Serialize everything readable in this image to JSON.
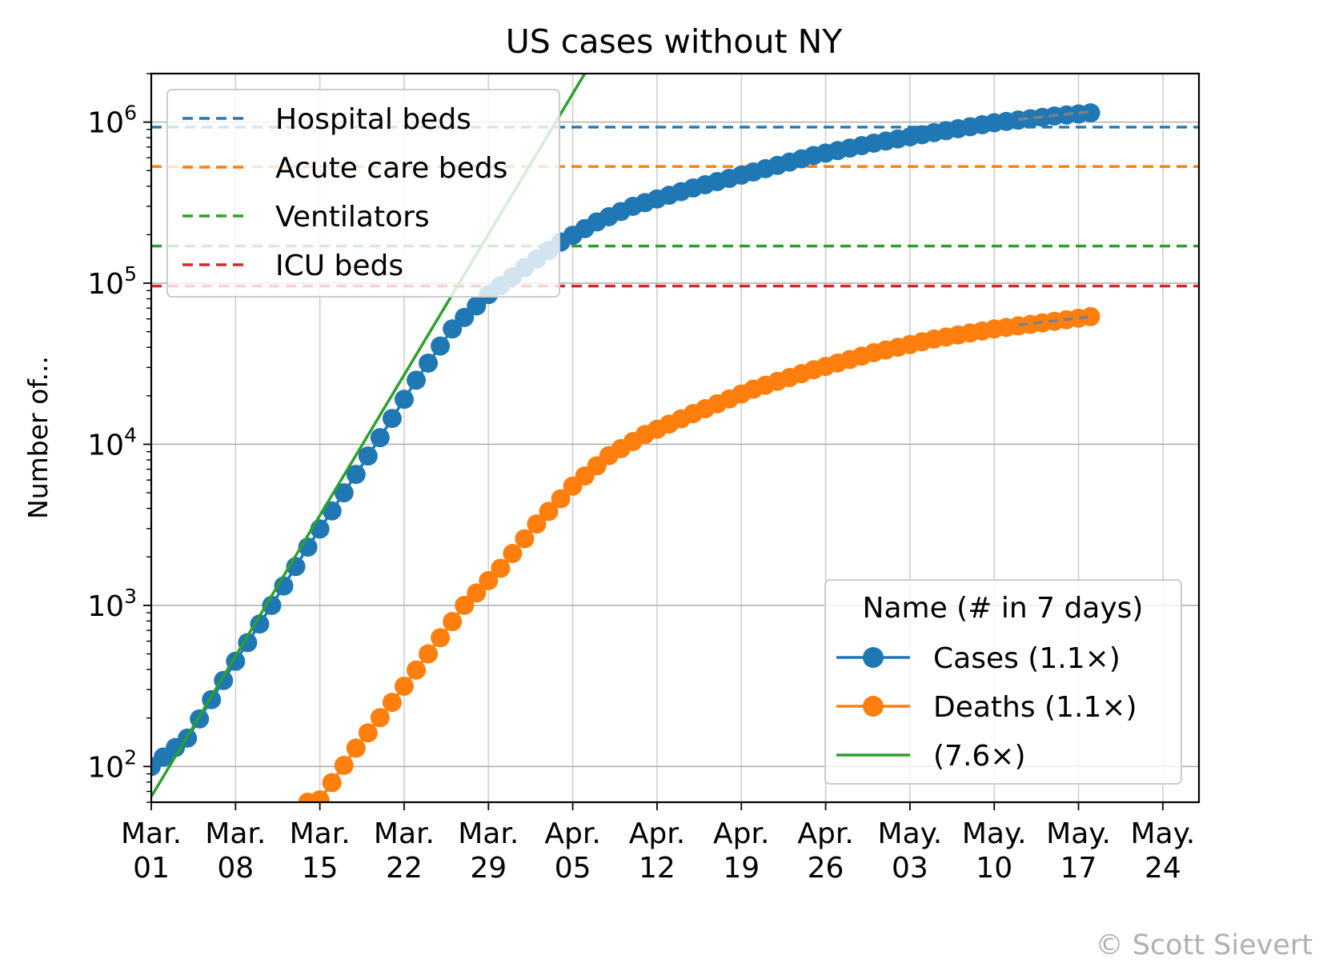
{
  "chart_data": {
    "type": "line",
    "title": "US cases without NY",
    "ylabel": "Number of...",
    "xlabel": "",
    "yscale": "log",
    "ylim": [
      60,
      2000000
    ],
    "x_start": "2020-03-01",
    "x_end": "2020-05-27",
    "grid": true,
    "x_ticks": [
      {
        "date": "2020-03-01",
        "line1": "Mar.",
        "line2": "01"
      },
      {
        "date": "2020-03-08",
        "line1": "Mar.",
        "line2": "08"
      },
      {
        "date": "2020-03-15",
        "line1": "Mar.",
        "line2": "15"
      },
      {
        "date": "2020-03-22",
        "line1": "Mar.",
        "line2": "22"
      },
      {
        "date": "2020-03-29",
        "line1": "Mar.",
        "line2": "29"
      },
      {
        "date": "2020-04-05",
        "line1": "Apr.",
        "line2": "05"
      },
      {
        "date": "2020-04-12",
        "line1": "Apr.",
        "line2": "12"
      },
      {
        "date": "2020-04-19",
        "line1": "Apr.",
        "line2": "19"
      },
      {
        "date": "2020-04-26",
        "line1": "Apr.",
        "line2": "26"
      },
      {
        "date": "2020-05-03",
        "line1": "May.",
        "line2": "03"
      },
      {
        "date": "2020-05-10",
        "line1": "May.",
        "line2": "10"
      },
      {
        "date": "2020-05-17",
        "line1": "May.",
        "line2": "17"
      },
      {
        "date": "2020-05-24",
        "line1": "May.",
        "line2": "24"
      }
    ],
    "y_ticks": [
      {
        "value": 100,
        "base": "10",
        "exp": "2"
      },
      {
        "value": 1000,
        "base": "10",
        "exp": "3"
      },
      {
        "value": 10000,
        "base": "10",
        "exp": "4"
      },
      {
        "value": 100000,
        "base": "10",
        "exp": "5"
      },
      {
        "value": 1000000,
        "base": "10",
        "exp": "6"
      }
    ],
    "reference_lines": [
      {
        "name": "Hospital beds",
        "value": 930000,
        "color": "#1f77b4"
      },
      {
        "name": "Acute care beds",
        "value": 530000,
        "color": "#ff7f0e"
      },
      {
        "name": "Ventilators",
        "value": 170000,
        "color": "#2ca02c"
      },
      {
        "name": "ICU beds",
        "value": 96000,
        "color": "#d62728"
      }
    ],
    "series": [
      {
        "name": "Cases (1.1×)",
        "color": "#1f77b4",
        "marker": "circle",
        "x": [
          "2020-03-01",
          "2020-03-04",
          "2020-03-08",
          "2020-03-11",
          "2020-03-14",
          "2020-03-17",
          "2020-03-20",
          "2020-03-23",
          "2020-03-26",
          "2020-03-29",
          "2020-04-01",
          "2020-04-04",
          "2020-04-07",
          "2020-04-10",
          "2020-04-15",
          "2020-04-20",
          "2020-04-25",
          "2020-04-30",
          "2020-05-05",
          "2020-05-10",
          "2020-05-15",
          "2020-05-18"
        ],
        "y": [
          100,
          150,
          450,
          1000,
          2300,
          5000,
          11000,
          25000,
          52000,
          85000,
          125000,
          180000,
          240000,
          300000,
          390000,
          490000,
          620000,
          740000,
          860000,
          990000,
          1090000,
          1140000
        ]
      },
      {
        "name": "Deaths (1.1×)",
        "color": "#ff7f0e",
        "marker": "circle",
        "x": [
          "2020-03-14",
          "2020-03-15",
          "2020-03-18",
          "2020-03-21",
          "2020-03-24",
          "2020-03-27",
          "2020-03-30",
          "2020-04-02",
          "2020-04-05",
          "2020-04-08",
          "2020-04-11",
          "2020-04-15",
          "2020-04-20",
          "2020-04-25",
          "2020-04-30",
          "2020-05-05",
          "2020-05-10",
          "2020-05-15",
          "2020-05-18"
        ],
        "y": [
          60,
          62,
          130,
          250,
          500,
          1000,
          1700,
          3200,
          5500,
          8500,
          11500,
          15500,
          22000,
          29000,
          37000,
          45000,
          52000,
          58000,
          62000
        ]
      },
      {
        "name": "(7.6×)",
        "color": "#2ca02c",
        "marker": "none",
        "x": [
          "2020-03-01",
          "2020-04-06"
        ],
        "y": [
          65,
          2000000
        ]
      }
    ],
    "forecast_lines": [
      {
        "color": "#808080",
        "x": [
          "2020-05-12",
          "2020-05-18"
        ],
        "y": [
          1040000,
          1160000
        ]
      },
      {
        "color": "#808080",
        "x": [
          "2020-05-12",
          "2020-05-18"
        ],
        "y": [
          55000,
          62000
        ]
      }
    ],
    "legend_reference": {
      "placement": "top-left"
    },
    "legend_series": {
      "placement": "bottom-right",
      "title": "Name (# in 7 days)"
    },
    "credit": "© Scott Sievert"
  }
}
